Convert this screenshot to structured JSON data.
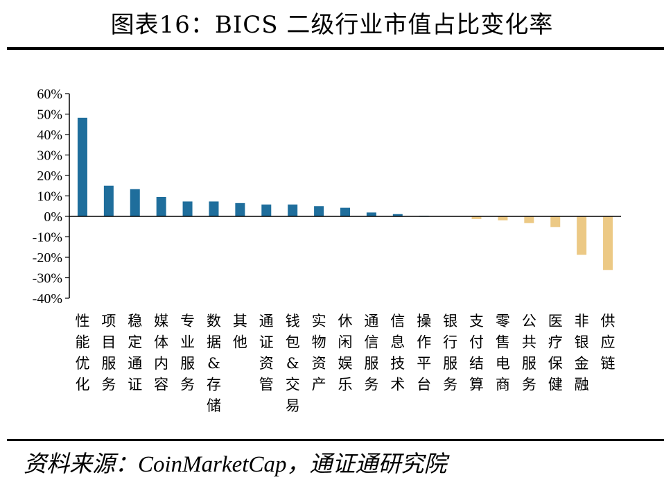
{
  "title": "图表16：BICS 二级行业市值占比变化率",
  "source_label": "资料来源：",
  "source_text": "CoinMarketCap，通证通研究院",
  "colors": {
    "positive": "#1f6e9c",
    "negative": "#ecc985",
    "axis": "#000000"
  },
  "chart_data": {
    "type": "bar",
    "title": "",
    "xlabel": "",
    "ylabel": "",
    "ylim": [
      -40,
      60
    ],
    "yticks": [
      "60%",
      "50%",
      "40%",
      "30%",
      "20%",
      "10%",
      "0%",
      "-10%",
      "-20%",
      "-30%",
      "-40%"
    ],
    "grid": false,
    "categories": [
      "性能优化",
      "项目服务",
      "稳定通证",
      "媒体内容",
      "专业服务",
      "数据&存储",
      "其他",
      "通证资管",
      "钱包&交易",
      "实物资产",
      "休闲娱乐",
      "通信服务",
      "信息技术",
      "操作平台",
      "银行服务",
      "支付结算",
      "零售电商",
      "公共服务",
      "医疗保健",
      "非银金融",
      "供应链"
    ],
    "values": [
      48.2,
      15,
      13.3,
      9.5,
      7.3,
      7.3,
      6.5,
      5.8,
      5.8,
      5,
      4.2,
      1.9,
      1.1,
      0.3,
      0.1,
      -1.3,
      -1.9,
      -3.3,
      -5.2,
      -18.8,
      -26.2
    ]
  }
}
